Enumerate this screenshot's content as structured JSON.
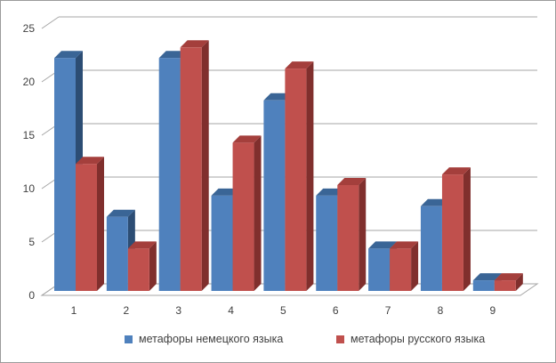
{
  "chart": {
    "background": "#ffffff",
    "border_color": "#9b9b9b",
    "gridline_color": "#a6a6a6",
    "text_color": "#3f3f3f"
  },
  "chart_data": {
    "type": "bar",
    "style": "3d-clustered-column",
    "title": "",
    "xlabel": "",
    "ylabel": "",
    "categories": [
      "1",
      "2",
      "3",
      "4",
      "5",
      "6",
      "7",
      "8",
      "9"
    ],
    "series": [
      {
        "name": "метафоры немецкого языка",
        "color": "#4f81bd",
        "color_top": "#3a6596",
        "color_side": "#2c4d74",
        "values": [
          22,
          7,
          22,
          9,
          18,
          9,
          4,
          8,
          1
        ]
      },
      {
        "name": "метафоры русского языка",
        "color": "#c0504d",
        "color_top": "#a43f3c",
        "color_side": "#802f2d",
        "values": [
          12,
          4,
          23,
          14,
          21,
          10,
          4,
          11,
          1
        ]
      }
    ],
    "ylim": [
      0,
      25
    ],
    "yticks": [
      0,
      5,
      10,
      15,
      20,
      25
    ],
    "grid": true,
    "legend_position": "bottom"
  }
}
